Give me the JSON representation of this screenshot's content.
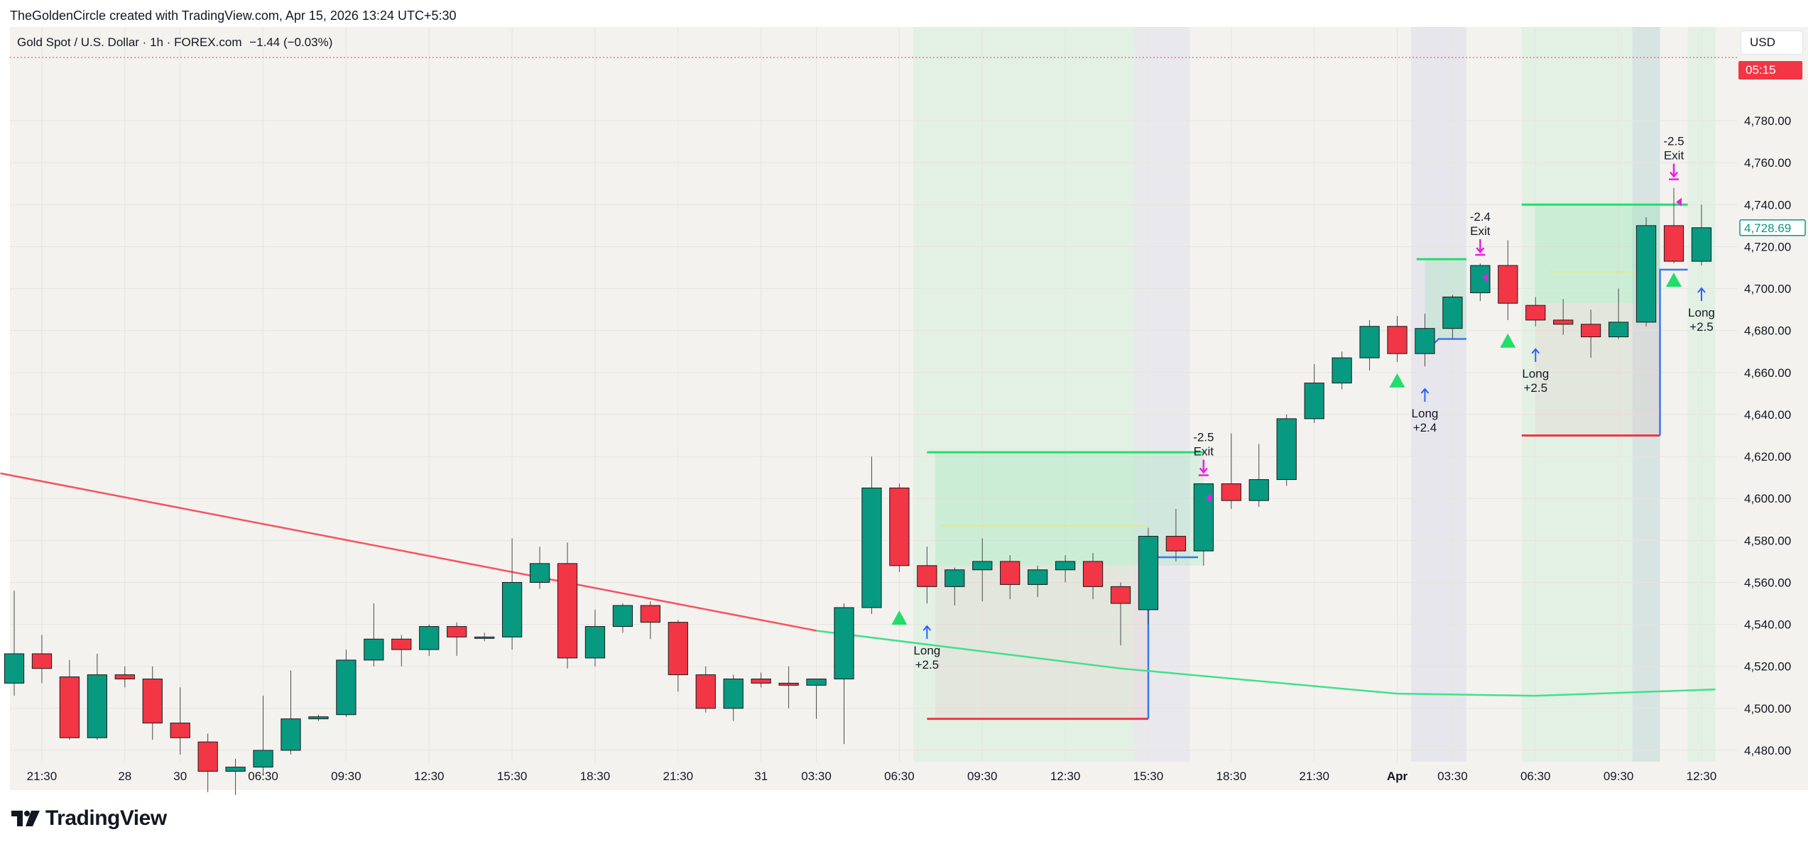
{
  "header": {
    "credit": "TheGoldenCircle created with TradingView.com, Apr 15, 2026 13:24 UTC+5:30"
  },
  "symbol": {
    "name": "Gold Spot / U.S. Dollar · 1h · FOREX.com",
    "change": "−1.44 (−0.03%)"
  },
  "currency": "USD",
  "countdown": "05:15",
  "last_price_label": "4,728.69",
  "brand": "TradingView",
  "colors": {
    "up": "#089981",
    "down": "#f23645",
    "accent_green": "#22dd6a",
    "signal_magenta": "#e91ee0",
    "signal_blue": "#2962ff",
    "ma_red": "#f7525f",
    "ma_green": "#42e08a"
  },
  "chart_data": {
    "type": "candlestick",
    "ylim": [
      4475,
      4800
    ],
    "y_ticks": [
      4480,
      4500,
      4520,
      4540,
      4560,
      4580,
      4600,
      4620,
      4640,
      4660,
      4680,
      4700,
      4720,
      4740,
      4760,
      4780
    ],
    "y_tick_labels": [
      "4,480.00",
      "4,500.00",
      "4,520.00",
      "4,540.00",
      "4,560.00",
      "4,580.00",
      "4,600.00",
      "4,620.00",
      "4,640.00",
      "4,660.00",
      "4,680.00",
      "4,700.00",
      "4,720.00",
      "4,740.00",
      "4,760.00",
      "4,780.00"
    ],
    "x_ticks": [
      {
        "label": "21:30",
        "i": 1
      },
      {
        "label": "28",
        "i": 4
      },
      {
        "label": "30",
        "i": 6
      },
      {
        "label": "06:30",
        "i": 9
      },
      {
        "label": "09:30",
        "i": 12
      },
      {
        "label": "12:30",
        "i": 15
      },
      {
        "label": "15:30",
        "i": 18
      },
      {
        "label": "18:30",
        "i": 21
      },
      {
        "label": "21:30",
        "i": 24
      },
      {
        "label": "31",
        "i": 27
      },
      {
        "label": "03:30",
        "i": 29
      },
      {
        "label": "06:30",
        "i": 32
      },
      {
        "label": "09:30",
        "i": 35
      },
      {
        "label": "12:30",
        "i": 38
      },
      {
        "label": "15:30",
        "i": 41
      },
      {
        "label": "18:30",
        "i": 44
      },
      {
        "label": "21:30",
        "i": 47
      },
      {
        "label": "Apr",
        "i": 50,
        "bold": true
      },
      {
        "label": "03:30",
        "i": 52
      },
      {
        "label": "06:30",
        "i": 55
      },
      {
        "label": "09:30",
        "i": 58
      },
      {
        "label": "12:30",
        "i": 61
      }
    ],
    "candles": [
      {
        "o": 4512,
        "h": 4556,
        "l": 4506,
        "c": 4526
      },
      {
        "o": 4526,
        "h": 4535,
        "l": 4512,
        "c": 4519
      },
      {
        "o": 4515,
        "h": 4523,
        "l": 4485,
        "c": 4486
      },
      {
        "o": 4486,
        "h": 4526,
        "l": 4485,
        "c": 4516
      },
      {
        "o": 4516,
        "h": 4520,
        "l": 4510,
        "c": 4514
      },
      {
        "o": 4514,
        "h": 4520,
        "l": 4485,
        "c": 4493
      },
      {
        "o": 4493,
        "h": 4510,
        "l": 4478,
        "c": 4486
      },
      {
        "o": 4484,
        "h": 4488,
        "l": 4460,
        "c": 4470
      },
      {
        "o": 4470,
        "h": 4476,
        "l": 4455,
        "c": 4472
      },
      {
        "o": 4472,
        "h": 4506,
        "l": 4468,
        "c": 4480
      },
      {
        "o": 4480,
        "h": 4518,
        "l": 4478,
        "c": 4495
      },
      {
        "o": 4495,
        "h": 4497,
        "l": 4494,
        "c": 4496
      },
      {
        "o": 4497,
        "h": 4528,
        "l": 4496,
        "c": 4523
      },
      {
        "o": 4523,
        "h": 4550,
        "l": 4520,
        "c": 4533
      },
      {
        "o": 4533,
        "h": 4535,
        "l": 4520,
        "c": 4528
      },
      {
        "o": 4528,
        "h": 4540,
        "l": 4525,
        "c": 4539
      },
      {
        "o": 4539,
        "h": 4541,
        "l": 4525,
        "c": 4534
      },
      {
        "o": 4534,
        "h": 4536,
        "l": 4532,
        "c": 4534
      },
      {
        "o": 4534,
        "h": 4581,
        "l": 4528,
        "c": 4560
      },
      {
        "o": 4560,
        "h": 4577,
        "l": 4557,
        "c": 4569
      },
      {
        "o": 4569,
        "h": 4579,
        "l": 4519,
        "c": 4524
      },
      {
        "o": 4524,
        "h": 4547,
        "l": 4520,
        "c": 4539
      },
      {
        "o": 4539,
        "h": 4550,
        "l": 4536,
        "c": 4549
      },
      {
        "o": 4549,
        "h": 4551,
        "l": 4533,
        "c": 4541
      },
      {
        "o": 4541,
        "h": 4542,
        "l": 4508,
        "c": 4516
      },
      {
        "o": 4516,
        "h": 4520,
        "l": 4498,
        "c": 4500
      },
      {
        "o": 4500,
        "h": 4516,
        "l": 4494,
        "c": 4514
      },
      {
        "o": 4514,
        "h": 4517,
        "l": 4510,
        "c": 4512
      },
      {
        "o": 4512,
        "h": 4520,
        "l": 4500,
        "c": 4511
      },
      {
        "o": 4511,
        "h": 4514,
        "l": 4495,
        "c": 4514
      },
      {
        "o": 4514,
        "h": 4550,
        "l": 4483,
        "c": 4548
      },
      {
        "o": 4548,
        "h": 4620,
        "l": 4545,
        "c": 4605
      },
      {
        "o": 4605,
        "h": 4607,
        "l": 4565,
        "c": 4568
      },
      {
        "o": 4568,
        "h": 4577,
        "l": 4550,
        "c": 4558
      },
      {
        "o": 4558,
        "h": 4567,
        "l": 4549,
        "c": 4566
      },
      {
        "o": 4566,
        "h": 4581,
        "l": 4551,
        "c": 4570
      },
      {
        "o": 4570,
        "h": 4573,
        "l": 4552,
        "c": 4559
      },
      {
        "o": 4559,
        "h": 4568,
        "l": 4553,
        "c": 4566
      },
      {
        "o": 4566,
        "h": 4573,
        "l": 4560,
        "c": 4570
      },
      {
        "o": 4570,
        "h": 4574,
        "l": 4552,
        "c": 4558
      },
      {
        "o": 4558,
        "h": 4560,
        "l": 4530,
        "c": 4550
      },
      {
        "o": 4547,
        "h": 4586,
        "l": 4540,
        "c": 4582
      },
      {
        "o": 4582,
        "h": 4595,
        "l": 4570,
        "c": 4575
      },
      {
        "o": 4575,
        "h": 4607,
        "l": 4568,
        "c": 4607
      },
      {
        "o": 4607,
        "h": 4631,
        "l": 4595,
        "c": 4599
      },
      {
        "o": 4599,
        "h": 4626,
        "l": 4596,
        "c": 4609
      },
      {
        "o": 4609,
        "h": 4640,
        "l": 4606,
        "c": 4638
      },
      {
        "o": 4638,
        "h": 4664,
        "l": 4636,
        "c": 4655
      },
      {
        "o": 4655,
        "h": 4670,
        "l": 4652,
        "c": 4667
      },
      {
        "o": 4667,
        "h": 4685,
        "l": 4661,
        "c": 4682
      },
      {
        "o": 4682,
        "h": 4687,
        "l": 4665,
        "c": 4669
      },
      {
        "o": 4669,
        "h": 4688,
        "l": 4663,
        "c": 4681
      },
      {
        "o": 4681,
        "h": 4697,
        "l": 4676,
        "c": 4696
      },
      {
        "o": 4698,
        "h": 4712,
        "l": 4694,
        "c": 4711
      },
      {
        "o": 4711,
        "h": 4723,
        "l": 4685,
        "c": 4693
      },
      {
        "o": 4692,
        "h": 4696,
        "l": 4682,
        "c": 4685
      },
      {
        "o": 4685,
        "h": 4695,
        "l": 4678,
        "c": 4683
      },
      {
        "o": 4683,
        "h": 4690,
        "l": 4667,
        "c": 4677
      },
      {
        "o": 4677,
        "h": 4700,
        "l": 4676,
        "c": 4684
      },
      {
        "o": 4684,
        "h": 4734,
        "l": 4682,
        "c": 4730
      },
      {
        "o": 4730,
        "h": 4748,
        "l": 4712,
        "c": 4713
      },
      {
        "o": 4713,
        "h": 4740,
        "l": 4711,
        "c": 4729
      }
    ],
    "trade_signals": [
      {
        "i": 33,
        "type": "entry",
        "label": "Long",
        "value": "+2.5"
      },
      {
        "i": 43,
        "type": "exit",
        "label": "Exit",
        "value": "-2.5"
      },
      {
        "i": 51,
        "type": "entry",
        "label": "Long",
        "value": "+2.4"
      },
      {
        "i": 53,
        "type": "exit",
        "label": "Exit",
        "value": "-2.4"
      },
      {
        "i": 55,
        "type": "entry",
        "label": "Long",
        "value": "+2.5"
      },
      {
        "i": 60,
        "type": "exit",
        "label": "Exit",
        "value": "-2.5"
      },
      {
        "i": 61,
        "type": "entry",
        "label": "Long",
        "value": "+2.5"
      }
    ],
    "ma_line": [
      {
        "i": -0.5,
        "v": 4612
      },
      {
        "i": 29,
        "v": 4537
      },
      {
        "i": 40,
        "v": 4519
      },
      {
        "i": 50,
        "v": 4507
      },
      {
        "i": 55,
        "v": 4506
      },
      {
        "i": 61.5,
        "v": 4509
      }
    ],
    "ma_cross_index": 29
  }
}
